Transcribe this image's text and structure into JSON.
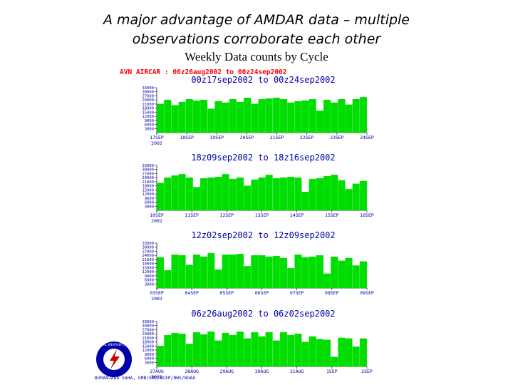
{
  "slide": {
    "title_line1": "A major advantage of AMDAR data – multiple",
    "title_line2": "observations corroborate each other",
    "subtitle": "Weekly Data counts by Cycle"
  },
  "figure": {
    "header": "AVN AIRCAR : 06z26aug2002 to 00z24sep2002",
    "credit": "BURANJANA SAHA, GMB/EMC/NCEP/NWS/NOAA",
    "colors": {
      "bar": "#00dd00",
      "header": "#ff0000",
      "panel_title": "#0000aa",
      "ticks": "#0000aa"
    },
    "logo": {
      "text": "NATIONAL WEATHER SERVICE",
      "colors": {
        "ring": "#0000aa",
        "inner": "#ffffff",
        "bolt": "#cc0000"
      }
    }
  },
  "chart_data": [
    {
      "type": "bar",
      "title": "00z17sep2002 to 00z24sep2002",
      "yticks": [
        "33000",
        "30000",
        "27000",
        "24000",
        "21000",
        "18000",
        "15000",
        "12000",
        "9000",
        "6000",
        "3000"
      ],
      "ylim": [
        0,
        33000
      ],
      "date_labels": [
        "17SEP",
        "18SEP",
        "19SEP",
        "20SEP",
        "21SEP",
        "22SEP",
        "23SEP",
        "24SEP"
      ],
      "year_label": "2002",
      "values": [
        21000,
        24000,
        20000,
        22500,
        24500,
        23500,
        24000,
        17500,
        23000,
        22000,
        24500,
        22500,
        25500,
        21000,
        24500,
        25000,
        25500,
        24500,
        22000,
        23000,
        23500,
        24500,
        16000,
        24000,
        22000,
        24500,
        20500,
        24500,
        26000
      ]
    },
    {
      "type": "bar",
      "title": "18z09sep2002 to 18z16sep2002",
      "yticks": [
        "33000",
        "30000",
        "27000",
        "24000",
        "21000",
        "18000",
        "15000",
        "12000",
        "9000",
        "6000",
        "3000"
      ],
      "ylim": [
        0,
        33000
      ],
      "date_labels": [
        "10SEP",
        "11SEP",
        "12SEP",
        "13SEP",
        "14SEP",
        "15SEP",
        "16SEP"
      ],
      "year_label": "2002",
      "values": [
        20000,
        24000,
        25500,
        26500,
        24000,
        17000,
        23500,
        24000,
        24500,
        26500,
        23000,
        24000,
        18000,
        22500,
        24000,
        26000,
        23500,
        24000,
        24500,
        24000,
        13500,
        23000,
        23500,
        25000,
        26000,
        22000,
        15500,
        19500,
        21500
      ]
    },
    {
      "type": "bar",
      "title": "12z02sep2002 to 12z09sep2002",
      "yticks": [
        "33000",
        "30000",
        "27000",
        "24000",
        "21000",
        "18000",
        "15000",
        "12000",
        "9000",
        "6000",
        "3000"
      ],
      "ylim": [
        0,
        33000
      ],
      "date_labels": [
        "03SEP",
        "04SEP",
        "05SEP",
        "06SEP",
        "07SEP",
        "08SEP",
        "09SEP"
      ],
      "year_label": "2002",
      "values": [
        22500,
        13000,
        24500,
        24000,
        17000,
        24500,
        23000,
        25500,
        13500,
        24500,
        24500,
        25000,
        16000,
        24000,
        24000,
        23000,
        23500,
        22000,
        14500,
        24500,
        22500,
        23000,
        24000,
        10500,
        23000,
        20000,
        22000,
        16500,
        19500
      ]
    },
    {
      "type": "bar",
      "title": "06z26aug2002 to 06z02sep2002",
      "yticks": [
        "33000",
        "30000",
        "27000",
        "24000",
        "21000",
        "18000",
        "15000",
        "12000",
        "9000",
        "6000",
        "3000"
      ],
      "ylim": [
        0,
        33000
      ],
      "date_labels": [
        "27AUG",
        "28AUG",
        "29AUG",
        "30AUG",
        "31AUG",
        "1SEP",
        "2SEP"
      ],
      "year_label": "2002",
      "values": [
        15000,
        23000,
        24500,
        24000,
        16500,
        25000,
        23500,
        25500,
        19000,
        24500,
        23000,
        25500,
        20500,
        25000,
        22000,
        25000,
        19000,
        25000,
        23000,
        24000,
        18000,
        22000,
        20000,
        19500,
        7000,
        21000,
        20500,
        14500,
        20500
      ]
    }
  ]
}
